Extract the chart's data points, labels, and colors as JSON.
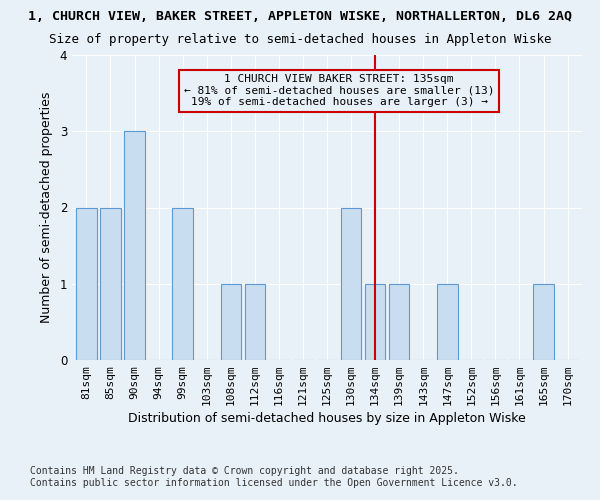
{
  "title_line1": "1, CHURCH VIEW, BAKER STREET, APPLETON WISKE, NORTHALLERTON, DL6 2AQ",
  "title_line2": "Size of property relative to semi-detached houses in Appleton Wiske",
  "categories": [
    "81sqm",
    "85sqm",
    "90sqm",
    "94sqm",
    "99sqm",
    "103sqm",
    "108sqm",
    "112sqm",
    "116sqm",
    "121sqm",
    "125sqm",
    "130sqm",
    "134sqm",
    "139sqm",
    "143sqm",
    "147sqm",
    "152sqm",
    "156sqm",
    "161sqm",
    "165sqm",
    "170sqm"
  ],
  "values": [
    2,
    2,
    3,
    0,
    2,
    0,
    1,
    1,
    0,
    0,
    0,
    2,
    1,
    1,
    0,
    1,
    0,
    0,
    0,
    1,
    0
  ],
  "bar_color": "#c9ddf0",
  "bar_edge_color": "#5b9bd5",
  "highlight_index": 12,
  "highlight_line_color": "#cc0000",
  "annotation_line1": "1 CHURCH VIEW BAKER STREET: 135sqm",
  "annotation_line2": "← 81% of semi-detached houses are smaller (13)",
  "annotation_line3": "19% of semi-detached houses are larger (3) →",
  "annotation_box_edge": "#cc0000",
  "xlabel": "Distribution of semi-detached houses by size in Appleton Wiske",
  "ylabel": "Number of semi-detached properties",
  "ylim": [
    0,
    4
  ],
  "yticks": [
    0,
    1,
    2,
    3,
    4
  ],
  "footer_line1": "Contains HM Land Registry data © Crown copyright and database right 2025.",
  "footer_line2": "Contains public sector information licensed under the Open Government Licence v3.0.",
  "bg_color": "#e8f0f8",
  "grid_color": "#ffffff",
  "title_fontsize": 9.5,
  "subtitle_fontsize": 9,
  "axis_label_fontsize": 9,
  "tick_fontsize": 8,
  "annotation_fontsize": 8,
  "footer_fontsize": 7
}
